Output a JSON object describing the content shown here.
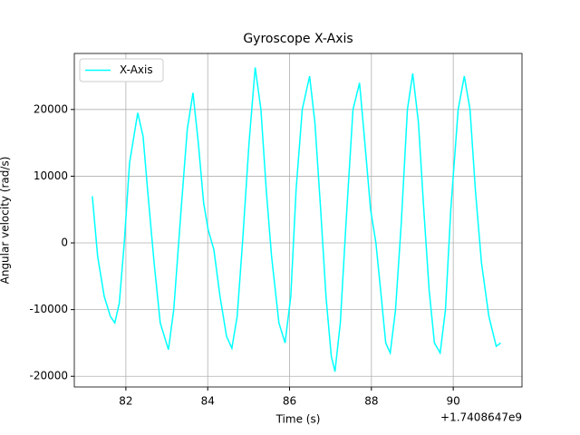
{
  "chart_data": {
    "type": "line",
    "title": "Gyroscope X-Axis",
    "xlabel": "Time (s)",
    "ylabel": "Angular velocity (rad/s)",
    "x_offset": "+1.7408647e9",
    "x": [
      81.18,
      81.31,
      81.47,
      81.62,
      81.73,
      81.84,
      81.96,
      82.09,
      82.29,
      82.42,
      82.53,
      82.69,
      82.84,
      83.04,
      83.17,
      83.35,
      83.5,
      83.64,
      83.77,
      83.9,
      84.01,
      84.15,
      84.3,
      84.46,
      84.59,
      84.72,
      84.85,
      85.01,
      85.16,
      85.3,
      85.43,
      85.56,
      85.74,
      85.89,
      86.03,
      86.16,
      86.31,
      86.49,
      86.62,
      86.76,
      86.89,
      87.02,
      87.11,
      87.24,
      87.38,
      87.55,
      87.71,
      87.84,
      87.98,
      88.11,
      88.24,
      88.35,
      88.46,
      88.59,
      88.73,
      88.88,
      89.01,
      89.15,
      89.28,
      89.41,
      89.54,
      89.68,
      89.81,
      89.94,
      90.12,
      90.27,
      90.41,
      90.54,
      90.69,
      90.87,
      91.05,
      91.16
    ],
    "series": [
      {
        "name": "X-Axis",
        "color": "#00ffff",
        "values": [
          7000,
          -2000,
          -8000,
          -11000,
          -12000,
          -9000,
          0,
          12000,
          19500,
          16000,
          8000,
          -3000,
          -12000,
          -16000,
          -10000,
          5000,
          17000,
          22500,
          15000,
          6000,
          2000,
          -1000,
          -8000,
          -14000,
          -15800,
          -11000,
          0,
          15000,
          26300,
          20000,
          8000,
          -2000,
          -12000,
          -15000,
          -8000,
          8000,
          20000,
          25000,
          18000,
          5000,
          -8000,
          -17000,
          -19300,
          -12000,
          3000,
          20000,
          24000,
          15000,
          5000,
          0,
          -8000,
          -15000,
          -16500,
          -10000,
          3000,
          20000,
          25400,
          18000,
          5000,
          -7000,
          -15000,
          -16500,
          -10000,
          5000,
          20000,
          25000,
          20000,
          8000,
          -3000,
          -11000,
          -15500,
          -15000
        ]
      }
    ],
    "xlim": [
      80.74,
      91.68
    ],
    "ylim": [
      -21600,
      28400
    ],
    "xticks": [
      82,
      84,
      86,
      88,
      90
    ],
    "yticks": [
      -20000,
      -10000,
      0,
      10000,
      20000
    ],
    "grid": true,
    "legend": "upper left"
  }
}
